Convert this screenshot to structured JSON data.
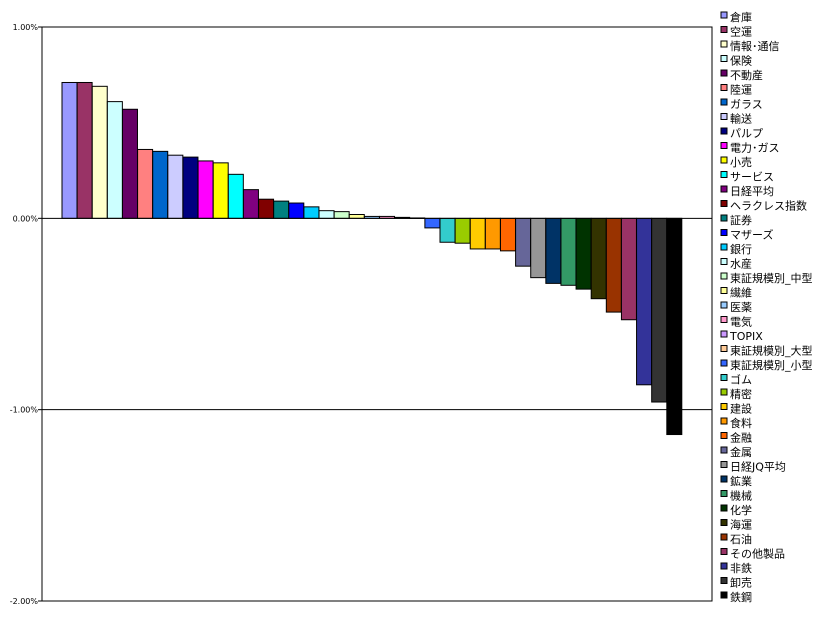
{
  "chart_data": {
    "type": "bar",
    "title": "",
    "xlabel": "",
    "ylabel": "",
    "ylim": [
      -2.0,
      1.0
    ],
    "yticks": [
      "1.00%",
      "0.00%",
      "-1.00%",
      "-2.00%"
    ],
    "ytick_values": [
      1.0,
      0.0,
      -1.0,
      -2.0
    ],
    "grid": "horizontal at -1.00%",
    "legend_position": "right",
    "categories": [
      "倉庫",
      "空運",
      "情報･通信",
      "保険",
      "不動産",
      "陸運",
      "ガラス",
      "輸送",
      "パルプ",
      "電力･ガス",
      "小売",
      "サービス",
      "日経平均",
      "ヘラクレス指数",
      "証券",
      "マザーズ",
      "銀行",
      "水産",
      "東証規模別_中型",
      "繊維",
      "医薬",
      "電気",
      "TOPIX",
      "東証規模別_大型",
      "東証規模別_小型",
      "ゴム",
      "精密",
      "建設",
      "食料",
      "金融",
      "金属",
      "日経JQ平均",
      "鉱業",
      "機械",
      "化学",
      "海運",
      "石油",
      "その他製品",
      "非鉄",
      "卸売",
      "鉄鋼"
    ],
    "values": [
      0.71,
      0.71,
      0.69,
      0.61,
      0.57,
      0.36,
      0.35,
      0.33,
      0.32,
      0.3,
      0.29,
      0.23,
      0.15,
      0.1,
      0.09,
      0.08,
      0.06,
      0.04,
      0.035,
      0.02,
      0.01,
      0.01,
      0.005,
      0.002,
      -0.05,
      -0.125,
      -0.13,
      -0.16,
      -0.16,
      -0.17,
      -0.25,
      -0.31,
      -0.34,
      -0.35,
      -0.37,
      -0.42,
      -0.49,
      -0.53,
      -0.87,
      -0.96,
      -1.13
    ],
    "colors": [
      "#9999FF",
      "#993366",
      "#FFFFCC",
      "#CCFFFF",
      "#660066",
      "#FF8080",
      "#0066CC",
      "#CCCCFF",
      "#000080",
      "#FF00FF",
      "#FFFF00",
      "#00FFFF",
      "#800080",
      "#800000",
      "#008080",
      "#0000FF",
      "#00CCFF",
      "#CCFFFF",
      "#CCFFCC",
      "#FFFF99",
      "#99CCFF",
      "#FF99CC",
      "#CC99FF",
      "#FFCC99",
      "#3366FF",
      "#33CCCC",
      "#99CC00",
      "#FFCC00",
      "#FF9900",
      "#FF6600",
      "#666699",
      "#969696",
      "#003366",
      "#339966",
      "#003300",
      "#333300",
      "#993300",
      "#993366",
      "#333399",
      "#333333",
      "#000000"
    ]
  }
}
